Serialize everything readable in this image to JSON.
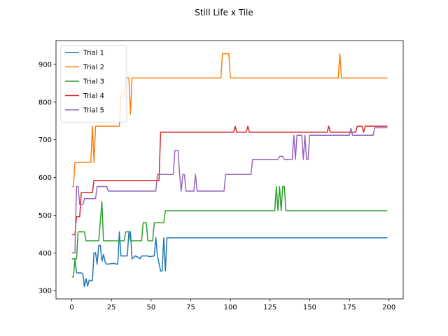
{
  "chart_data": {
    "type": "line",
    "title": "Still Life x Tile",
    "xlabel": "",
    "ylabel": "",
    "xlim": [
      -9.95,
      208.95
    ],
    "ylim": [
      278,
      963
    ],
    "xticks": [
      0,
      25,
      50,
      75,
      100,
      125,
      150,
      175,
      200
    ],
    "yticks": [
      300,
      400,
      500,
      600,
      700,
      800,
      900
    ],
    "grid": false,
    "legend_position": "upper-left",
    "series": [
      {
        "name": "Trial 1",
        "color": "#1f77b4",
        "points": [
          [
            0,
            384
          ],
          [
            2,
            384
          ],
          [
            3,
            347
          ],
          [
            6,
            347
          ],
          [
            7,
            344
          ],
          [
            8,
            310
          ],
          [
            9,
            332
          ],
          [
            10,
            312
          ],
          [
            11,
            328
          ],
          [
            12,
            326
          ],
          [
            13,
            326
          ],
          [
            14,
            400
          ],
          [
            15,
            400
          ],
          [
            16,
            370
          ],
          [
            17,
            420
          ],
          [
            18,
            420
          ],
          [
            19,
            378
          ],
          [
            20,
            396
          ],
          [
            21,
            376
          ],
          [
            22,
            370
          ],
          [
            26,
            372
          ],
          [
            29,
            370
          ],
          [
            30,
            456
          ],
          [
            31,
            392
          ],
          [
            35,
            392
          ],
          [
            36,
            456
          ],
          [
            37,
            456
          ],
          [
            38,
            384
          ],
          [
            40,
            392
          ],
          [
            42,
            388
          ],
          [
            43,
            384
          ],
          [
            44,
            392
          ],
          [
            48,
            392
          ],
          [
            49,
            390
          ],
          [
            52,
            392
          ],
          [
            53,
            440
          ],
          [
            54,
            392
          ],
          [
            55,
            372
          ],
          [
            56,
            352
          ],
          [
            57,
            352
          ],
          [
            58,
            440
          ],
          [
            59,
            352
          ],
          [
            60,
            440
          ],
          [
            199,
            440
          ]
        ]
      },
      {
        "name": "Trial 2",
        "color": "#ff7f0e",
        "points": [
          [
            0,
            576
          ],
          [
            1,
            576
          ],
          [
            2,
            640
          ],
          [
            12,
            640
          ],
          [
            13,
            736
          ],
          [
            14,
            640
          ],
          [
            15,
            736
          ],
          [
            30,
            736
          ],
          [
            31,
            816
          ],
          [
            33,
            816
          ],
          [
            34,
            864
          ],
          [
            36,
            864
          ],
          [
            37,
            768
          ],
          [
            38,
            864
          ],
          [
            94,
            864
          ],
          [
            95,
            928
          ],
          [
            99,
            928
          ],
          [
            100,
            864
          ],
          [
            168,
            864
          ],
          [
            169,
            928
          ],
          [
            170,
            864
          ],
          [
            199,
            864
          ]
        ]
      },
      {
        "name": "Trial 3",
        "color": "#2ca02c",
        "points": [
          [
            0,
            336
          ],
          [
            1,
            336
          ],
          [
            2,
            384
          ],
          [
            3,
            384
          ],
          [
            4,
            456
          ],
          [
            8,
            456
          ],
          [
            9,
            432
          ],
          [
            17,
            432
          ],
          [
            19,
            536
          ],
          [
            20,
            432
          ],
          [
            33,
            432
          ],
          [
            34,
            456
          ],
          [
            36,
            456
          ],
          [
            37,
            432
          ],
          [
            44,
            432
          ],
          [
            45,
            480
          ],
          [
            47,
            480
          ],
          [
            48,
            432
          ],
          [
            51,
            432
          ],
          [
            52,
            480
          ],
          [
            58,
            480
          ],
          [
            59,
            512
          ],
          [
            128,
            512
          ],
          [
            129,
            576
          ],
          [
            130,
            512
          ],
          [
            131,
            576
          ],
          [
            132,
            512
          ],
          [
            133,
            576
          ],
          [
            134,
            576
          ],
          [
            135,
            512
          ],
          [
            199,
            512
          ]
        ]
      },
      {
        "name": "Trial 4",
        "color": "#d62728",
        "points": [
          [
            0,
            448
          ],
          [
            2,
            448
          ],
          [
            3,
            496
          ],
          [
            5,
            496
          ],
          [
            6,
            560
          ],
          [
            13,
            560
          ],
          [
            14,
            592
          ],
          [
            55,
            592
          ],
          [
            56,
            720
          ],
          [
            102,
            720
          ],
          [
            103,
            736
          ],
          [
            104,
            720
          ],
          [
            110,
            720
          ],
          [
            111,
            736
          ],
          [
            112,
            720
          ],
          [
            161,
            720
          ],
          [
            162,
            736
          ],
          [
            163,
            720
          ],
          [
            179,
            720
          ],
          [
            180,
            736
          ],
          [
            183,
            736
          ],
          [
            184,
            720
          ],
          [
            185,
            736
          ],
          [
            199,
            736
          ]
        ]
      },
      {
        "name": "Trial 5",
        "color": "#9467bd",
        "points": [
          [
            0,
            400
          ],
          [
            2,
            400
          ],
          [
            3,
            576
          ],
          [
            4,
            576
          ],
          [
            5,
            528
          ],
          [
            7,
            528
          ],
          [
            8,
            544
          ],
          [
            15,
            544
          ],
          [
            16,
            576
          ],
          [
            22,
            576
          ],
          [
            23,
            564
          ],
          [
            53,
            564
          ],
          [
            54,
            608
          ],
          [
            64,
            608
          ],
          [
            65,
            672
          ],
          [
            67,
            672
          ],
          [
            68,
            608
          ],
          [
            69,
            564
          ],
          [
            70,
            608
          ],
          [
            71,
            608
          ],
          [
            72,
            564
          ],
          [
            77,
            564
          ],
          [
            78,
            608
          ],
          [
            79,
            564
          ],
          [
            96,
            564
          ],
          [
            97,
            608
          ],
          [
            113,
            608
          ],
          [
            114,
            648
          ],
          [
            130,
            648
          ],
          [
            131,
            656
          ],
          [
            133,
            656
          ],
          [
            134,
            648
          ],
          [
            139,
            648
          ],
          [
            140,
            712
          ],
          [
            141,
            648
          ],
          [
            142,
            712
          ],
          [
            145,
            712
          ],
          [
            146,
            648
          ],
          [
            147,
            712
          ],
          [
            148,
            648
          ],
          [
            149,
            648
          ],
          [
            150,
            712
          ],
          [
            175,
            712
          ],
          [
            176,
            730
          ],
          [
            177,
            712
          ],
          [
            190,
            712
          ],
          [
            191,
            732
          ],
          [
            199,
            732
          ]
        ]
      }
    ]
  }
}
